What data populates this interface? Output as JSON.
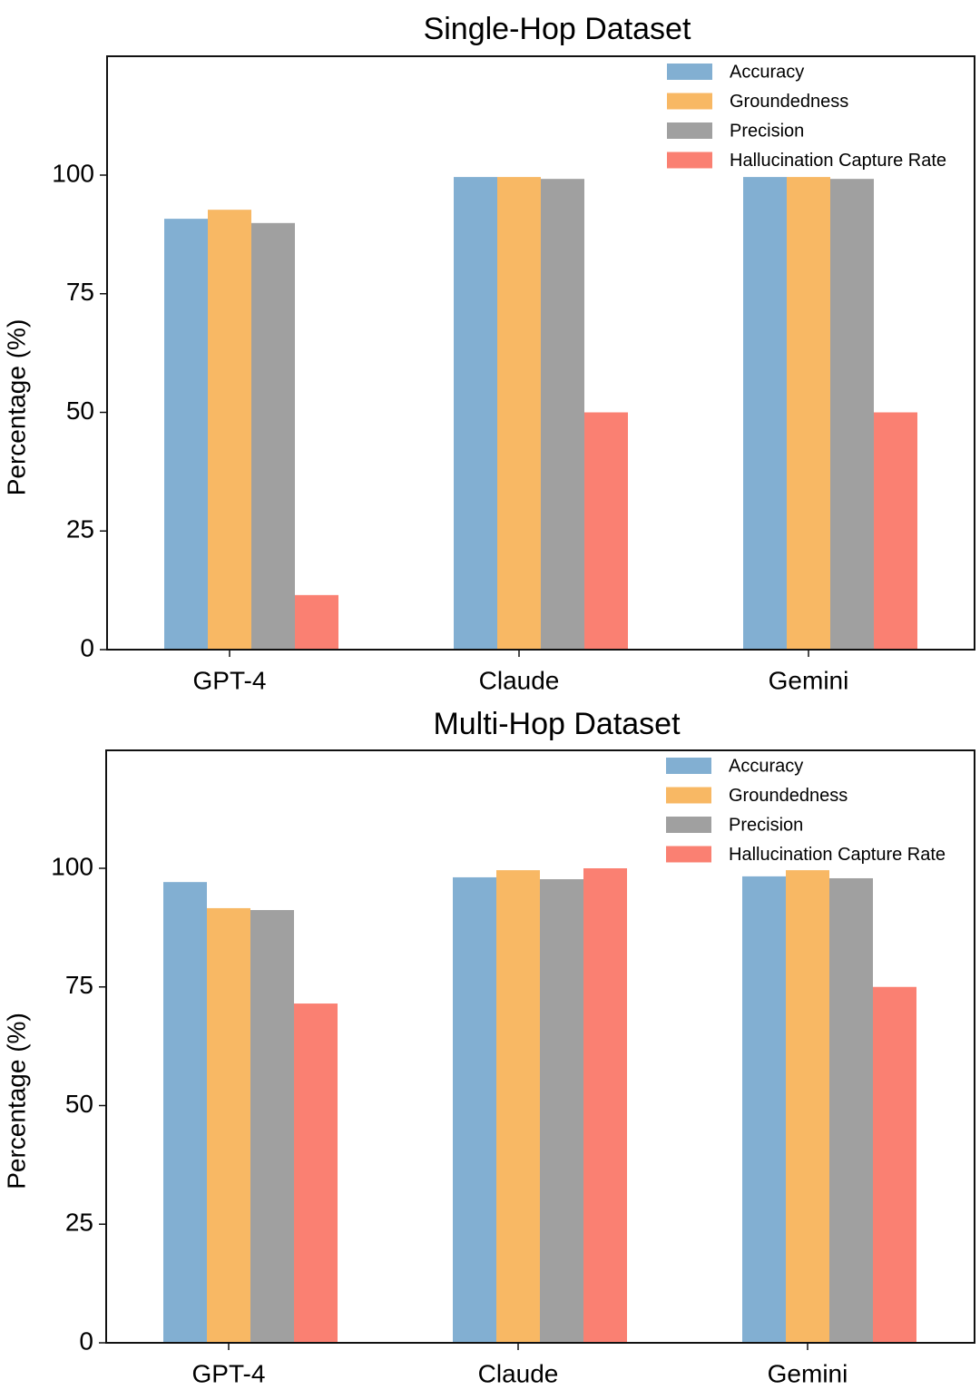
{
  "chart_data": [
    {
      "type": "bar",
      "title": "Single-Hop Dataset",
      "xlabel": "",
      "ylabel": "Percentage (%)",
      "categories": [
        "GPT-4",
        "Claude",
        "Gemini"
      ],
      "ylim": [
        0,
        125
      ],
      "yticks": [
        0,
        25,
        50,
        75,
        100
      ],
      "grid": false,
      "legend_position": "top-right",
      "series": [
        {
          "name": "Accuracy",
          "color": "#82AFD2",
          "values": [
            90.8,
            99.6,
            99.6
          ]
        },
        {
          "name": "Groundedness",
          "color": "#F8B864",
          "values": [
            92.7,
            99.6,
            99.6
          ]
        },
        {
          "name": "Precision",
          "color": "#A0A0A0",
          "values": [
            89.9,
            99.2,
            99.2
          ]
        },
        {
          "name": "Hallucination Capture Rate",
          "color": "#FA8072",
          "values": [
            11.5,
            50.0,
            50.0
          ]
        }
      ]
    },
    {
      "type": "bar",
      "title": "Multi-Hop Dataset",
      "xlabel": "",
      "ylabel": "Percentage (%)",
      "categories": [
        "GPT-4",
        "Claude",
        "Gemini"
      ],
      "ylim": [
        0,
        125
      ],
      "yticks": [
        0,
        25,
        50,
        75,
        100
      ],
      "grid": false,
      "legend_position": "top-right",
      "series": [
        {
          "name": "Accuracy",
          "color": "#82AFD2",
          "values": [
            97.1,
            98.1,
            98.3
          ]
        },
        {
          "name": "Groundedness",
          "color": "#F8B864",
          "values": [
            91.6,
            99.6,
            99.6
          ]
        },
        {
          "name": "Precision",
          "color": "#A0A0A0",
          "values": [
            91.2,
            97.7,
            97.9
          ]
        },
        {
          "name": "Hallucination Capture Rate",
          "color": "#FA8072",
          "values": [
            71.5,
            100.0,
            75.0
          ]
        }
      ]
    }
  ]
}
